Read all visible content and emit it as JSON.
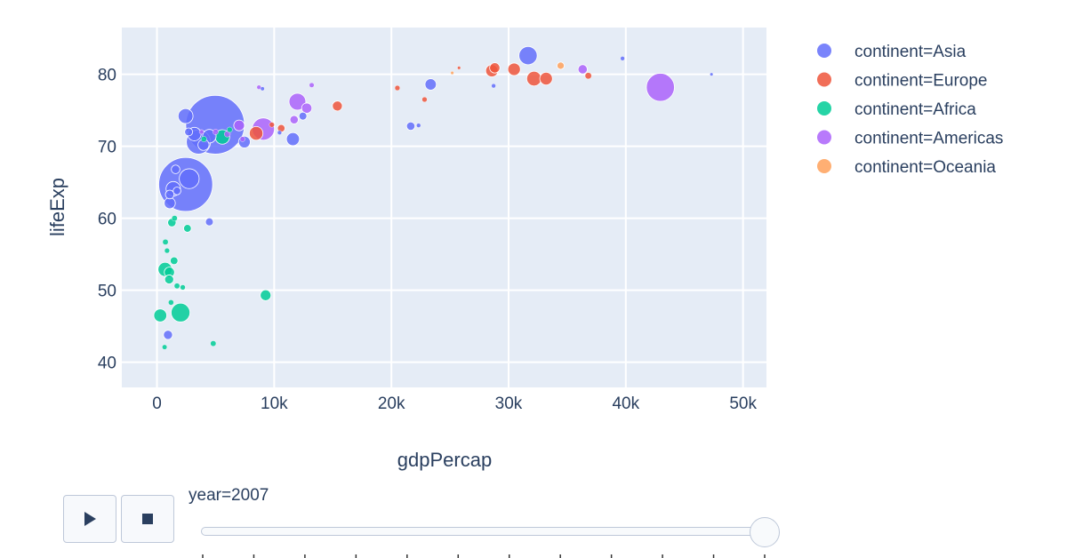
{
  "chart_data": {
    "type": "scatter",
    "xlabel": "gdpPercap",
    "ylabel": "lifeExp",
    "xlim": [
      -3000,
      52000
    ],
    "ylim": [
      36.5,
      86.5
    ],
    "x_ticks": [
      0,
      10000,
      20000,
      30000,
      40000,
      50000
    ],
    "x_tick_labels": [
      "0",
      "10k",
      "20k",
      "30k",
      "40k",
      "50k"
    ],
    "y_ticks": [
      40,
      50,
      60,
      70,
      80
    ],
    "y_tick_labels": [
      "40",
      "50",
      "60",
      "70",
      "80"
    ],
    "grid": true,
    "legend_position": "right",
    "series": [
      {
        "name": "continent=Asia",
        "color": "#636efa",
        "points": [
          {
            "x": 4960,
            "y": 73.0,
            "s": 1318
          },
          {
            "x": 2450,
            "y": 64.7,
            "s": 1110
          },
          {
            "x": 3540,
            "y": 70.6,
            "s": 223
          },
          {
            "x": 2750,
            "y": 65.5,
            "s": 150
          },
          {
            "x": 31660,
            "y": 82.6,
            "s": 127
          },
          {
            "x": 1390,
            "y": 64.1,
            "s": 80
          },
          {
            "x": 2440,
            "y": 74.2,
            "s": 85
          },
          {
            "x": 3190,
            "y": 71.7,
            "s": 69
          },
          {
            "x": 11600,
            "y": 71.0,
            "s": 65
          },
          {
            "x": 4470,
            "y": 71.4,
            "s": 70
          },
          {
            "x": 23350,
            "y": 78.6,
            "s": 49
          },
          {
            "x": 7460,
            "y": 70.6,
            "s": 53
          },
          {
            "x": 3970,
            "y": 70.2,
            "s": 47
          },
          {
            "x": 21650,
            "y": 72.8,
            "s": 27
          },
          {
            "x": 1090,
            "y": 62.1,
            "s": 47
          },
          {
            "x": 1590,
            "y": 66.8,
            "s": 28
          },
          {
            "x": 940,
            "y": 43.8,
            "s": 32
          },
          {
            "x": 4470,
            "y": 59.5,
            "s": 24
          },
          {
            "x": 12450,
            "y": 74.2,
            "s": 24
          },
          {
            "x": 2700,
            "y": 72.0,
            "s": 24
          },
          {
            "x": 1710,
            "y": 63.8,
            "s": 23
          },
          {
            "x": 1090,
            "y": 63.3,
            "s": 29
          },
          {
            "x": 39720,
            "y": 82.2,
            "s": 7
          },
          {
            "x": 28720,
            "y": 78.4,
            "s": 7
          },
          {
            "x": 47310,
            "y": 80.0,
            "s": 4
          },
          {
            "x": 22320,
            "y": 72.9,
            "s": 7
          },
          {
            "x": 10460,
            "y": 71.9,
            "s": 7
          },
          {
            "x": 9000,
            "y": 78.0,
            "s": 6
          }
        ]
      },
      {
        "name": "continent=Europe",
        "color": "#ef553b",
        "points": [
          {
            "x": 32170,
            "y": 79.4,
            "s": 82
          },
          {
            "x": 33200,
            "y": 79.4,
            "s": 61
          },
          {
            "x": 30470,
            "y": 80.7,
            "s": 60
          },
          {
            "x": 28570,
            "y": 80.5,
            "s": 58
          },
          {
            "x": 28820,
            "y": 80.9,
            "s": 40
          },
          {
            "x": 8460,
            "y": 71.8,
            "s": 71
          },
          {
            "x": 15390,
            "y": 75.6,
            "s": 38
          },
          {
            "x": 36800,
            "y": 79.8,
            "s": 16
          },
          {
            "x": 10600,
            "y": 72.5,
            "s": 22
          },
          {
            "x": 9800,
            "y": 73.0,
            "s": 10
          },
          {
            "x": 22830,
            "y": 76.5,
            "s": 10
          },
          {
            "x": 20510,
            "y": 78.1,
            "s": 10
          },
          {
            "x": 25770,
            "y": 80.9,
            "s": 4
          }
        ]
      },
      {
        "name": "continent=Africa",
        "color": "#00cc96",
        "points": [
          {
            "x": 2010,
            "y": 46.9,
            "s": 135
          },
          {
            "x": 5580,
            "y": 71.3,
            "s": 80
          },
          {
            "x": 690,
            "y": 52.9,
            "s": 76
          },
          {
            "x": 280,
            "y": 46.5,
            "s": 64
          },
          {
            "x": 1060,
            "y": 52.5,
            "s": 40
          },
          {
            "x": 9270,
            "y": 49.3,
            "s": 44
          },
          {
            "x": 2600,
            "y": 58.6,
            "s": 23
          },
          {
            "x": 1460,
            "y": 54.1,
            "s": 23
          },
          {
            "x": 1040,
            "y": 51.5,
            "s": 31
          },
          {
            "x": 1270,
            "y": 59.4,
            "s": 27
          },
          {
            "x": 4800,
            "y": 42.6,
            "s": 12
          },
          {
            "x": 1200,
            "y": 48.3,
            "s": 11
          },
          {
            "x": 650,
            "y": 42.1,
            "s": 9
          },
          {
            "x": 1500,
            "y": 60.0,
            "s": 12
          },
          {
            "x": 720,
            "y": 56.7,
            "s": 12
          },
          {
            "x": 860,
            "y": 55.5,
            "s": 10
          },
          {
            "x": 1710,
            "y": 50.6,
            "s": 12
          },
          {
            "x": 2200,
            "y": 50.4,
            "s": 10
          },
          {
            "x": 4000,
            "y": 71.0,
            "s": 12
          },
          {
            "x": 6200,
            "y": 72.3,
            "s": 11
          }
        ]
      },
      {
        "name": "continent=Americas",
        "color": "#ab63fa",
        "points": [
          {
            "x": 42950,
            "y": 78.2,
            "s": 301
          },
          {
            "x": 9070,
            "y": 72.4,
            "s": 190
          },
          {
            "x": 11980,
            "y": 76.2,
            "s": 108
          },
          {
            "x": 36320,
            "y": 80.7,
            "s": 33
          },
          {
            "x": 12780,
            "y": 75.3,
            "s": 40
          },
          {
            "x": 7010,
            "y": 72.9,
            "s": 44
          },
          {
            "x": 11700,
            "y": 73.7,
            "s": 27
          },
          {
            "x": 6000,
            "y": 71.7,
            "s": 14
          },
          {
            "x": 5000,
            "y": 72.0,
            "s": 12
          },
          {
            "x": 13200,
            "y": 78.5,
            "s": 9
          },
          {
            "x": 8700,
            "y": 78.2,
            "s": 7
          },
          {
            "x": 7300,
            "y": 71.0,
            "s": 10
          },
          {
            "x": 3800,
            "y": 72.0,
            "s": 8
          }
        ]
      },
      {
        "name": "continent=Oceania",
        "color": "#ffa15a",
        "points": [
          {
            "x": 34440,
            "y": 81.2,
            "s": 20
          },
          {
            "x": 25190,
            "y": 80.2,
            "s": 4
          }
        ]
      }
    ]
  },
  "slider": {
    "label": "year=2007",
    "value_fraction": 1.0,
    "tick_count": 12
  },
  "controls": {
    "play_icon": "play-icon",
    "stop_icon": "stop-icon"
  }
}
